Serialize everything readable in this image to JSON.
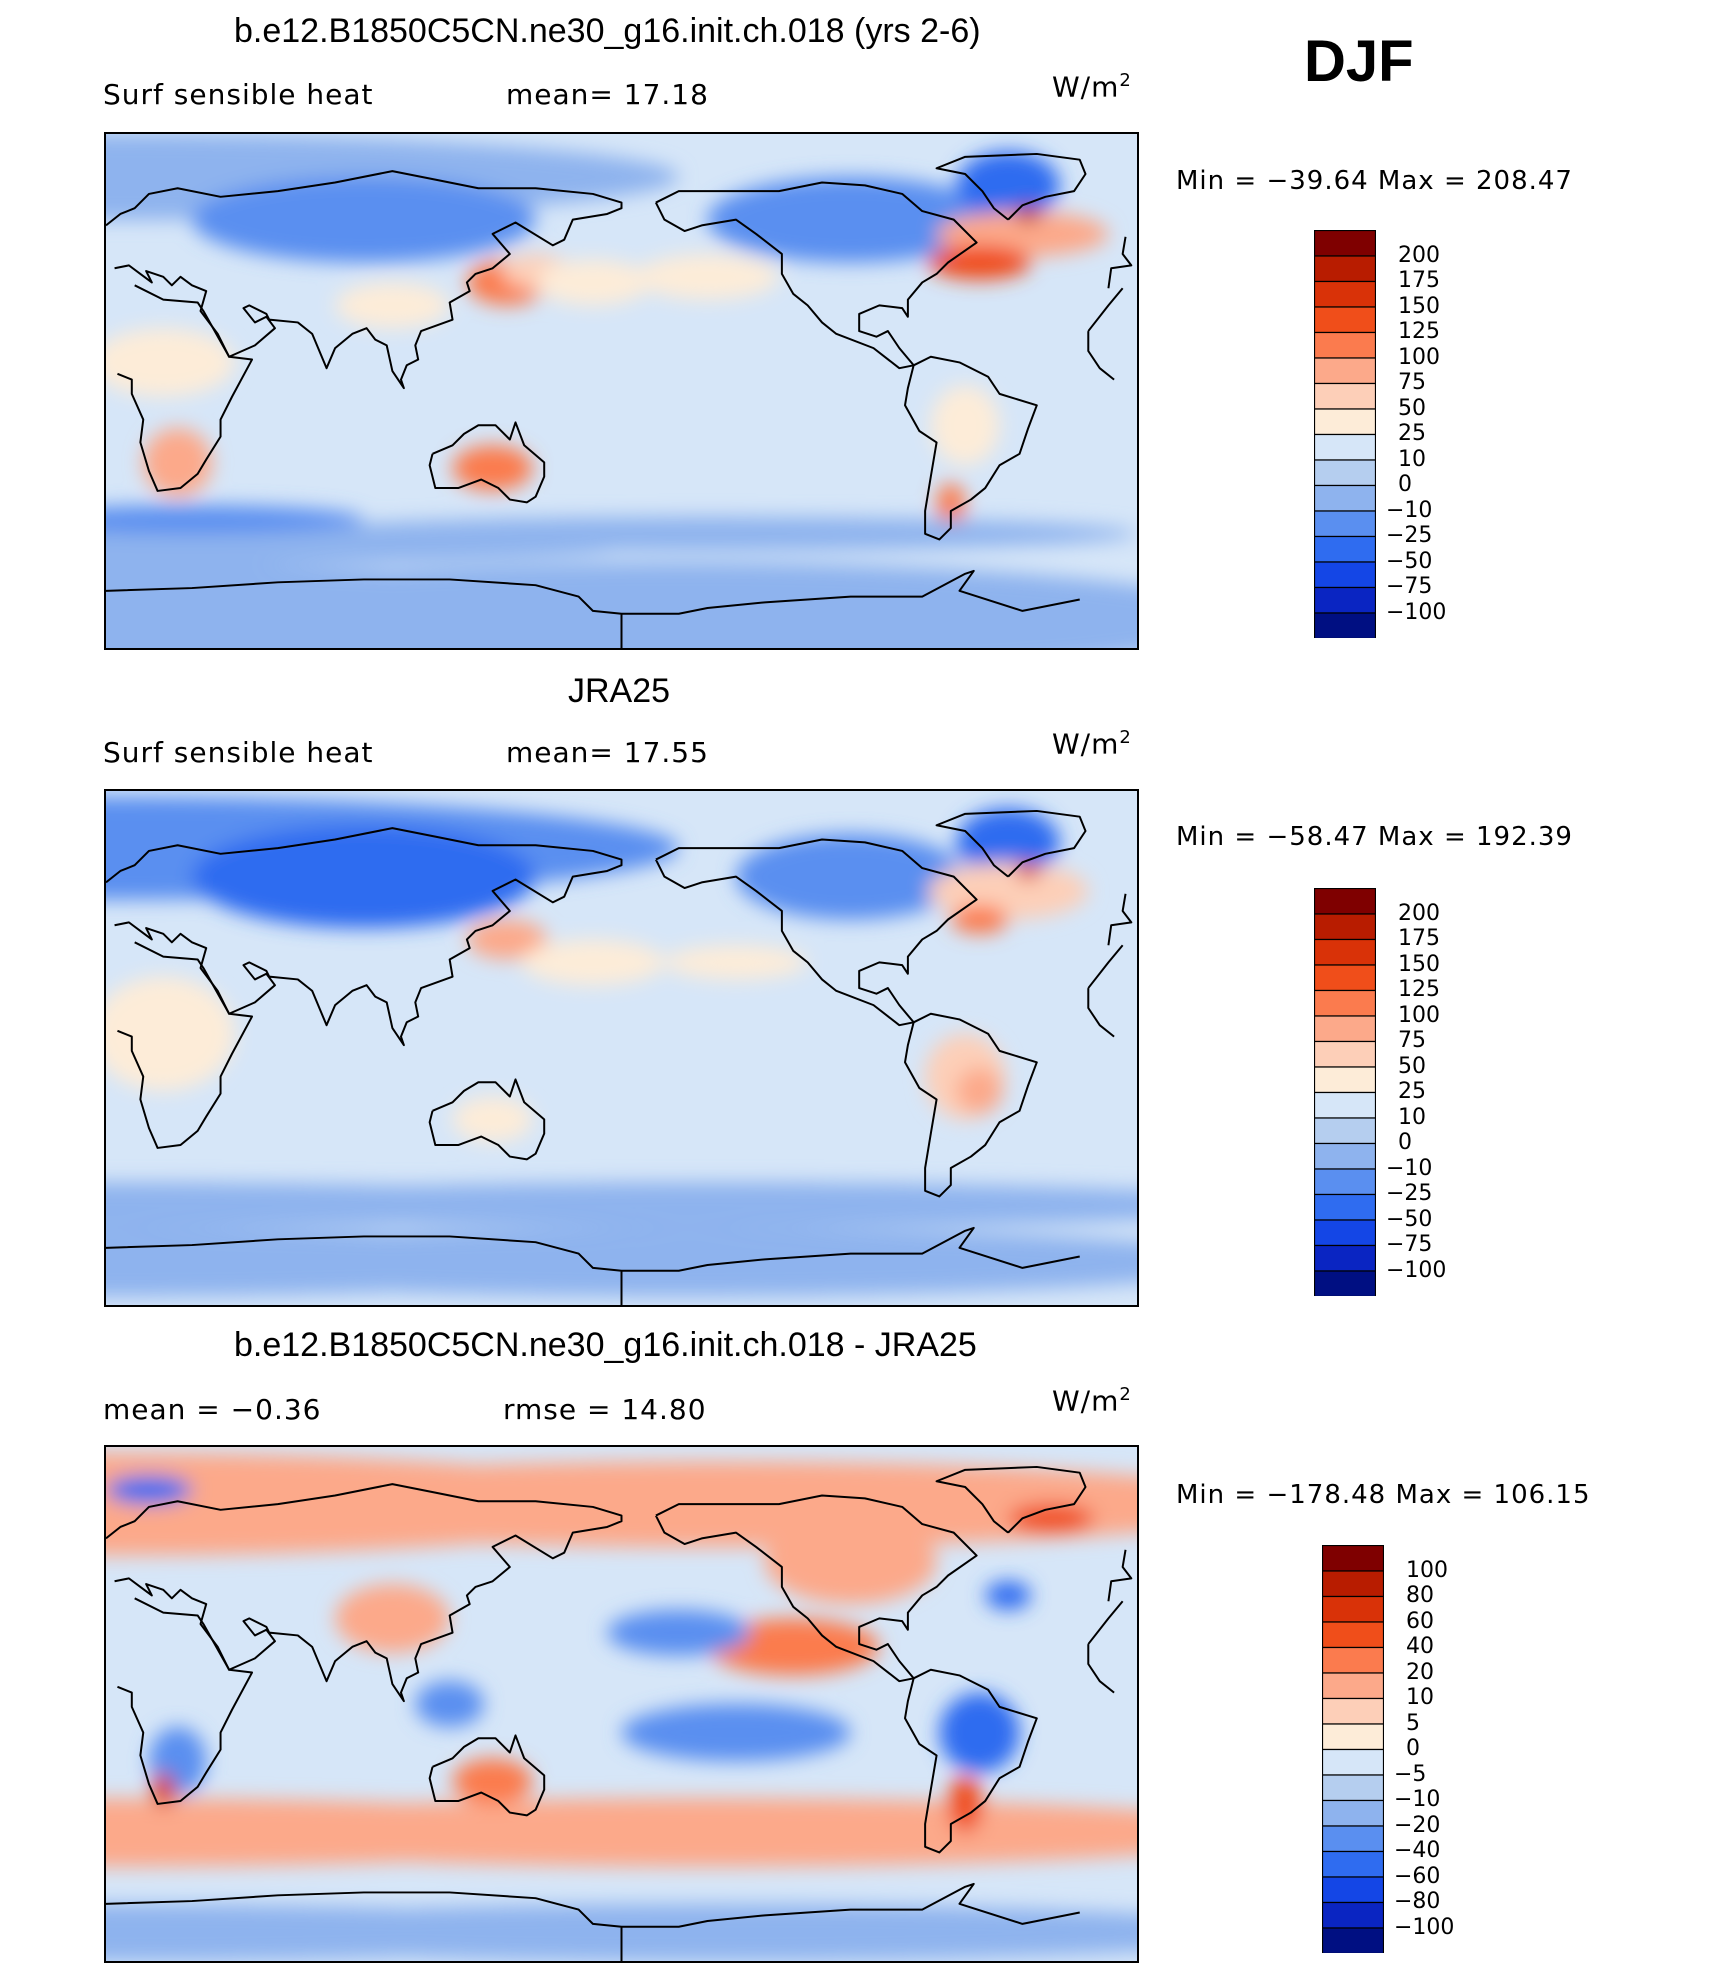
{
  "season_label": "DJF",
  "panels": [
    {
      "title": "b.e12.B1850C5CN.ne30_g16.init.ch.018 (yrs 2-6)",
      "left_text": "Surf  sensible  heat",
      "right_text": "mean=   17.18",
      "units_base": "W/m",
      "units_exp": "2",
      "minmax": "Min  =  −39.64  Max  =  208.47"
    },
    {
      "title": "JRA25",
      "left_text": "Surf  sensible  heat",
      "right_text": "mean=   17.55",
      "units_base": "W/m",
      "units_exp": "2",
      "minmax": "Min  =  −58.47  Max  =  192.39"
    },
    {
      "title": "b.e12.B1850C5CN.ne30_g16.init.ch.018 - JRA25",
      "left_text": "mean  =    −0.36",
      "right_text": "rmse  =    14.80",
      "units_base": "W/m",
      "units_exp": "2",
      "minmax": "Min  =  −178.48  Max  =  106.15"
    }
  ],
  "chart_data": [
    {
      "type": "heatmap",
      "title": "b.e12.B1850C5CN.ne30_g16.init.ch.018 (yrs 2-6)",
      "variable": "Surf  sensible  heat",
      "mean": 17.18,
      "min": -39.64,
      "max": 208.47,
      "units": "W/m2",
      "colorbar_levels": [
        "200",
        "175",
        "150",
        "125",
        "100",
        "75",
        "50",
        "25",
        "10",
        "0",
        "−10",
        "−25",
        "−50",
        "−75",
        "−100"
      ],
      "colorbar_colors": [
        "#7f0000",
        "#b81c00",
        "#d93208",
        "#f04e1a",
        "#fb7b4e",
        "#fca98a",
        "#fdcfb8",
        "#fdecd8",
        "#d6e6f8",
        "#b5ceef",
        "#8eb3ee",
        "#5a8ff0",
        "#2f6cf0",
        "#1446e6",
        "#0a25c2",
        "#000f82"
      ]
    },
    {
      "type": "heatmap",
      "title": "JRA25",
      "variable": "Surf  sensible  heat",
      "mean": 17.55,
      "min": -58.47,
      "max": 192.39,
      "units": "W/m2",
      "colorbar_levels": [
        "200",
        "175",
        "150",
        "125",
        "100",
        "75",
        "50",
        "25",
        "10",
        "0",
        "−10",
        "−25",
        "−50",
        "−75",
        "−100"
      ],
      "colorbar_colors": [
        "#7f0000",
        "#b81c00",
        "#d93208",
        "#f04e1a",
        "#fb7b4e",
        "#fca98a",
        "#fdcfb8",
        "#fdecd8",
        "#d6e6f8",
        "#b5ceef",
        "#8eb3ee",
        "#5a8ff0",
        "#2f6cf0",
        "#1446e6",
        "#0a25c2",
        "#000f82"
      ]
    },
    {
      "type": "heatmap",
      "title": "b.e12.B1850C5CN.ne30_g16.init.ch.018 - JRA25",
      "mean": -0.36,
      "rmse": 14.8,
      "min": -178.48,
      "max": 106.15,
      "units": "W/m2",
      "colorbar_levels": [
        "100",
        "80",
        "60",
        "40",
        "20",
        "10",
        "5",
        "0",
        "−5",
        "−10",
        "−20",
        "−40",
        "−60",
        "−80",
        "−100"
      ],
      "colorbar_colors": [
        "#7f0000",
        "#b81c00",
        "#d93208",
        "#f04e1a",
        "#fb7b4e",
        "#fca98a",
        "#fdcfb8",
        "#fdecd8",
        "#d6e6f8",
        "#b5ceef",
        "#8eb3ee",
        "#5a8ff0",
        "#2f6cf0",
        "#1446e6",
        "#0a25c2",
        "#000f82"
      ]
    }
  ]
}
